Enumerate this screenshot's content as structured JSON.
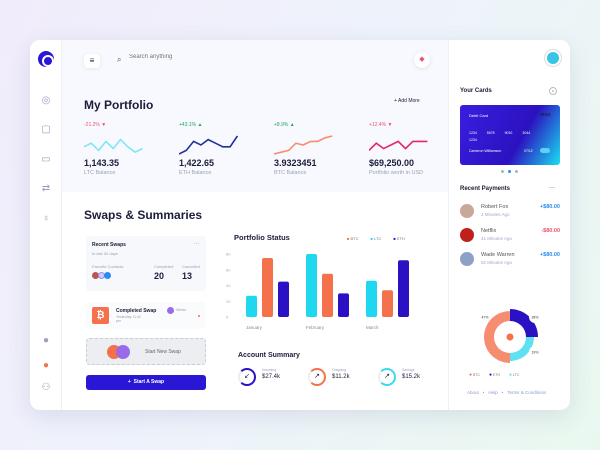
{
  "header": {
    "search_placeholder": "Search anything"
  },
  "portfolio": {
    "title": "My Portfolio",
    "add_more": "+ Add More",
    "cards": [
      {
        "change": "-21.2%",
        "direction": "down",
        "value": "1,143.35",
        "label": "LTC Balance",
        "color": "#7fe6f5"
      },
      {
        "change": "+43.1%",
        "direction": "up",
        "value": "1,422.65",
        "label": "ETH Balance",
        "color": "#23309a"
      },
      {
        "change": "+8.9%",
        "direction": "up",
        "value": "3.9323451",
        "label": "BTC Balance",
        "color": "#f98e6b"
      },
      {
        "change": "+12.4%",
        "direction": "down",
        "value": "$69,250.00",
        "label": "Portfolio worth in USD",
        "color": "#e3286b"
      }
    ]
  },
  "swaps": {
    "title": "Swaps & Summaries",
    "recent": {
      "title": "Recent Swaps",
      "subtitle": "In last 30 days",
      "favorites_label": "Favorite Contacts",
      "completed_label": "Completed",
      "completed": "20",
      "cancelled_label": "Cancelled",
      "cancelled": "13",
      "more": "..."
    },
    "completed_swap": {
      "title": "Completed Swap",
      "time": "Yesterday 11:42 pm",
      "user": "Stellar"
    },
    "new_swap": "Start New Swap",
    "start_button": "Start A Swap"
  },
  "chart_data": {
    "type": "bar",
    "title": "Portfolio Status",
    "categories": [
      "January",
      "February",
      "March"
    ],
    "series": [
      {
        "name": "BTC",
        "color": "#f4714c",
        "values": [
          75,
          55,
          34
        ]
      },
      {
        "name": "LTC",
        "color": "#1fd8ef",
        "values": [
          27,
          80,
          46
        ]
      },
      {
        "name": "ETH",
        "color": "#2a12c4",
        "values": [
          45,
          30,
          72
        ]
      }
    ],
    "bar_order": [
      "LTC",
      "BTC",
      "ETH"
    ],
    "yticks": [
      0,
      20,
      40,
      60,
      80
    ],
    "ylim": [
      0,
      80
    ],
    "legend": "top-right",
    "grid": false
  },
  "summary": {
    "title": "Account Summary",
    "items": [
      {
        "label": "Incoming",
        "value": "$27.4k",
        "color": "#2a12c4",
        "icon": "arrow-down-left"
      },
      {
        "label": "Outgoing",
        "value": "$11.2k",
        "color": "#f4714c",
        "icon": "arrow-up-right"
      },
      {
        "label": "Savings",
        "value": "$15.2k",
        "color": "#3dd9ee",
        "icon": "arrow-up-right"
      }
    ]
  },
  "cards": {
    "title": "Your Cards",
    "type": "Debit Card",
    "brand": "VISA",
    "number": [
      "1234",
      "5678",
      "9010",
      "3044"
    ],
    "number_extra": "1234",
    "holder": "Cameron Williamson",
    "expiry": "07/12",
    "pager_active": 1
  },
  "payments": {
    "title": "Recent Payments",
    "more": "...",
    "items": [
      {
        "name": "Robert Fox",
        "time": "2 Minutes Ago",
        "amount": "+$80.00",
        "color": "#2a8cf0"
      },
      {
        "name": "Netflix",
        "time": "41 Minutes Ago",
        "amount": "-$80.00",
        "color": "#f0506e"
      },
      {
        "name": "Wade Warren",
        "time": "52 Minutes Ago",
        "amount": "+$80.00",
        "color": "#2a8cf0"
      }
    ]
  },
  "allocation": {
    "slices": [
      {
        "name": "BTC",
        "pct": "47%",
        "value": 47,
        "color": "#f4714c"
      },
      {
        "name": "ETH",
        "pct": "28%",
        "value": 28,
        "color": "#2a12c4"
      },
      {
        "name": "LTC",
        "pct": "19%",
        "value": 19,
        "color": "#5fe1f2"
      }
    ]
  },
  "footer": {
    "links": [
      "About",
      "Help",
      "Terms & Conditions"
    ],
    "sep": "•"
  }
}
